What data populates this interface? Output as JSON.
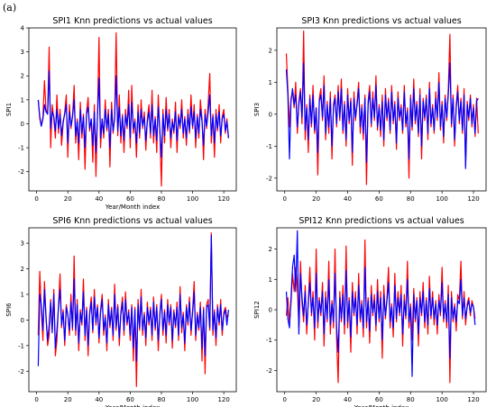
{
  "figure_label": "(a)",
  "colors": {
    "actual": "#ff0000",
    "predicted": "#0000ff",
    "axis": "#000000"
  },
  "chart_data": [
    {
      "type": "line",
      "title": "SPI1 Knn predictions vs actual values",
      "xlabel": "Year/Month index",
      "ylabel": "SPI1",
      "xlim": [
        -5,
        128
      ],
      "ylim": [
        -2.8,
        4.0
      ],
      "xticks": [
        0,
        20,
        40,
        60,
        80,
        100,
        120
      ],
      "yticks": [
        -2,
        -1,
        0,
        1,
        2,
        3,
        4
      ],
      "x_start": 1,
      "series": [
        {
          "values": [
            1.0,
            0.2,
            -0.1,
            0.3,
            1.8,
            0.6,
            0.4,
            3.2,
            -1.0,
            0.8,
            0.2,
            -0.6,
            1.2,
            -0.4,
            0.6,
            -0.9,
            0.0,
            0.5,
            1.2,
            -1.4,
            0.8,
            -0.2,
            0.3,
            1.6,
            -0.8,
            0.2,
            -1.5,
            0.9,
            -0.6,
            0.4,
            -1.9,
            0.5,
            1.1,
            -0.3,
            0.2,
            -1.6,
            0.8,
            -2.2,
            0.4,
            3.6,
            -1.0,
            0.2,
            -0.6,
            1.0,
            -0.3,
            0.6,
            -1.8,
            0.9,
            -0.4,
            0.3,
            3.8,
            -0.5,
            1.2,
            -0.8,
            0.4,
            -1.2,
            0.6,
            -0.2,
            1.4,
            -1.0,
            1.6,
            -0.4,
            0.2,
            -1.4,
            0.8,
            -0.6,
            1.0,
            -0.2,
            0.5,
            -1.1,
            0.2,
            0.8,
            -0.6,
            1.4,
            -0.8,
            0.3,
            -1.2,
            1.2,
            -0.4,
            -2.6,
            0.6,
            -0.8,
            1.1,
            -0.3,
            0.6,
            -1.0,
            0.2,
            -0.4,
            0.9,
            -1.2,
            0.4,
            -0.2,
            1.0,
            -0.6,
            0.3,
            -0.9,
            0.6,
            -0.4,
            1.2,
            -0.2,
            0.8,
            -1.0,
            0.4,
            -0.6,
            1.0,
            0.2,
            -1.5,
            0.6,
            -0.2,
            0.9,
            2.1,
            -0.8,
            0.4,
            -1.4,
            0.6,
            -0.3,
            0.8,
            -0.8,
            0.3,
            0.6,
            -0.4,
            0.2,
            -0.6
          ]
        },
        {
          "values": [
            1.0,
            0.3,
            -0.1,
            0.2,
            0.8,
            0.5,
            0.4,
            2.2,
            -0.2,
            0.5,
            0.3,
            -0.3,
            0.6,
            -0.2,
            0.4,
            -0.5,
            0.1,
            0.4,
            0.8,
            -0.8,
            0.5,
            -0.1,
            0.3,
            1.0,
            -0.5,
            0.1,
            -0.8,
            0.6,
            -0.4,
            0.3,
            -1.0,
            0.4,
            0.7,
            -0.2,
            0.2,
            -0.9,
            0.5,
            -1.2,
            0.3,
            1.9,
            -0.6,
            0.2,
            -0.4,
            0.6,
            -0.2,
            0.4,
            -1.0,
            0.6,
            -0.3,
            0.2,
            2.0,
            -0.3,
            0.7,
            -0.5,
            0.3,
            -0.7,
            0.4,
            -0.1,
            0.8,
            -0.6,
            0.9,
            -0.2,
            0.1,
            -0.8,
            0.5,
            -0.4,
            0.6,
            -0.1,
            0.3,
            -0.7,
            0.1,
            0.5,
            -0.4,
            0.8,
            -0.5,
            0.2,
            -0.7,
            0.7,
            -0.3,
            -1.4,
            0.4,
            -0.5,
            0.6,
            -0.2,
            0.4,
            -0.6,
            0.1,
            -0.3,
            0.5,
            -0.7,
            0.3,
            -0.1,
            0.6,
            -0.4,
            0.2,
            -0.6,
            0.4,
            -0.3,
            0.7,
            -0.1,
            0.5,
            -0.6,
            0.3,
            -0.4,
            0.6,
            0.1,
            -0.9,
            0.4,
            -0.1,
            0.5,
            1.2,
            -0.5,
            0.3,
            -0.8,
            0.4,
            -0.2,
            0.5,
            -0.5,
            0.2,
            0.4,
            -0.3,
            0.1,
            -0.6
          ]
        }
      ]
    },
    {
      "type": "line",
      "title": "SPI3 Knn predictions vs actual values",
      "xlabel": "",
      "ylabel": "SPI3",
      "xlim": [
        -5,
        128
      ],
      "ylim": [
        -2.4,
        2.7
      ],
      "xticks": [
        0,
        20,
        40,
        60,
        80,
        100,
        120
      ],
      "yticks": [
        -2,
        -1,
        0,
        1,
        2
      ],
      "x_start": 1,
      "series": [
        {
          "values": [
            1.9,
            0.8,
            -0.4,
            0.5,
            0.7,
            0.2,
            1.0,
            -0.6,
            0.4,
            0.8,
            -0.3,
            2.6,
            -0.8,
            0.3,
            -1.2,
            0.6,
            -0.4,
            0.9,
            -0.6,
            0.2,
            -1.9,
            0.5,
            0.8,
            -0.2,
            1.2,
            -0.8,
            0.4,
            -0.6,
            0.7,
            -1.4,
            0.3,
            0.6,
            -0.4,
            0.9,
            -0.2,
            1.1,
            -0.6,
            0.4,
            -1.0,
            0.8,
            -0.3,
            0.5,
            -1.6,
            0.7,
            -0.2,
            0.4,
            1.0,
            -0.6,
            0.3,
            -0.8,
            0.6,
            -2.2,
            0.4,
            0.9,
            -0.4,
            0.7,
            -0.2,
            1.2,
            -0.5,
            0.3,
            -0.7,
            0.6,
            -1.0,
            0.8,
            -0.2,
            0.5,
            -0.6,
            0.9,
            -0.3,
            0.4,
            -1.1,
            0.7,
            -0.2,
            0.3,
            -0.6,
            0.9,
            -0.4,
            0.2,
            -2.0,
            0.6,
            -0.5,
            1.1,
            -0.3,
            0.4,
            -0.7,
            0.8,
            -1.4,
            0.5,
            -0.2,
            0.6,
            -0.8,
            1.0,
            -0.4,
            0.3,
            -0.6,
            0.7,
            -0.2,
            1.3,
            -0.5,
            0.4,
            -0.9,
            0.6,
            -0.2,
            0.8,
            2.5,
            -0.4,
            0.6,
            -1.0,
            0.3,
            0.9,
            -0.3,
            0.5,
            -0.6,
            0.8,
            -1.6,
            0.4,
            -0.2,
            0.6,
            -0.4,
            0.3,
            -0.7,
            0.5,
            -0.6
          ]
        },
        {
          "values": [
            1.4,
            0.6,
            -1.4,
            0.4,
            0.8,
            0.3,
            0.6,
            -0.4,
            0.3,
            0.7,
            -0.1,
            1.6,
            -0.5,
            0.2,
            -0.8,
            0.5,
            -0.3,
            0.6,
            -0.5,
            0.2,
            -1.2,
            0.4,
            0.6,
            -0.1,
            0.9,
            -0.6,
            0.3,
            -0.4,
            0.5,
            -1.0,
            0.2,
            0.5,
            -0.3,
            0.7,
            -0.1,
            0.8,
            -0.5,
            0.3,
            -0.8,
            0.6,
            -0.2,
            0.4,
            -1.2,
            0.5,
            -0.1,
            0.3,
            0.8,
            -0.4,
            0.2,
            -0.6,
            0.5,
            -1.5,
            0.3,
            0.7,
            -0.3,
            0.5,
            -0.1,
            0.9,
            -0.4,
            0.2,
            -0.5,
            0.4,
            -0.8,
            0.6,
            -0.1,
            0.4,
            -0.5,
            0.7,
            -0.2,
            0.3,
            -0.9,
            0.5,
            -0.1,
            0.2,
            -0.5,
            0.7,
            -0.3,
            0.1,
            -1.4,
            0.5,
            -0.4,
            0.8,
            -0.2,
            0.3,
            -0.6,
            0.6,
            -1.0,
            0.4,
            -0.1,
            0.5,
            -0.6,
            0.8,
            -0.3,
            0.2,
            -0.5,
            0.5,
            -0.1,
            1.0,
            -0.4,
            0.3,
            -0.7,
            0.5,
            -0.1,
            0.6,
            1.6,
            -0.3,
            0.5,
            -0.8,
            0.2,
            0.7,
            -0.2,
            0.4,
            -0.5,
            0.6,
            -1.7,
            0.3,
            -0.1,
            0.5,
            -0.3,
            0.2,
            -0.6,
            0.4,
            0.5
          ]
        }
      ]
    },
    {
      "type": "line",
      "title": "SPI6 Knn predictions vs actual values",
      "xlabel": "Year/Month index",
      "ylabel": "SPI6",
      "xlim": [
        -5,
        128
      ],
      "ylim": [
        -2.8,
        3.6
      ],
      "xticks": [
        0,
        20,
        40,
        60,
        80,
        100,
        120
      ],
      "yticks": [
        -2,
        -1,
        0,
        1,
        2,
        3
      ],
      "x_start": 1,
      "series": [
        {
          "values": [
            -0.6,
            1.9,
            0.4,
            -0.8,
            1.5,
            0.2,
            -1.0,
            -0.6,
            0.8,
            -0.4,
            1.2,
            -1.4,
            -0.8,
            0.6,
            1.8,
            -0.3,
            0.4,
            -1.0,
            0.6,
            0.2,
            -0.6,
            1.0,
            -0.4,
            2.5,
            -0.6,
            0.8,
            -1.2,
            0.4,
            -0.2,
            1.6,
            -0.8,
            0.5,
            -1.4,
            0.3,
            0.9,
            -0.5,
            1.2,
            -0.2,
            0.6,
            -0.9,
            0.4,
            1.0,
            -0.6,
            0.2,
            -1.2,
            0.8,
            -0.3,
            0.5,
            -0.8,
            1.4,
            -0.4,
            0.6,
            -1.0,
            0.3,
            0.9,
            -0.6,
            1.1,
            -0.2,
            0.4,
            -0.8,
            0.6,
            -1.6,
            0.5,
            -2.6,
            0.8,
            -0.4,
            1.2,
            -0.6,
            0.3,
            -1.0,
            0.7,
            -0.2,
            0.5,
            -0.8,
            0.9,
            -0.4,
            0.6,
            -1.2,
            0.3,
            1.0,
            -0.6,
            0.4,
            -0.9,
            0.8,
            -0.2,
            0.6,
            -1.1,
            0.4,
            -0.3,
            0.7,
            -0.8,
            1.3,
            -0.5,
            0.3,
            -1.2,
            0.6,
            -0.2,
            0.9,
            -0.6,
            0.4,
            1.5,
            -0.8,
            0.3,
            -0.4,
            0.7,
            -1.6,
            0.5,
            -2.1,
            0.6,
            0.8,
            -0.4,
            3.4,
            -0.6,
            0.4,
            -1.0,
            0.6,
            -0.2,
            0.8,
            -0.6,
            0.3,
            0.5,
            0.1,
            0.2
          ]
        },
        {
          "values": [
            -1.8,
            1.0,
            0.6,
            -0.4,
            1.2,
            0.1,
            -0.8,
            -0.2,
            0.7,
            -0.5,
            1.0,
            -1.1,
            -0.4,
            0.5,
            1.2,
            -0.2,
            0.3,
            -0.8,
            0.5,
            0.2,
            -0.4,
            0.7,
            -0.3,
            1.6,
            -0.4,
            0.6,
            -0.9,
            0.3,
            -0.1,
            1.1,
            -0.6,
            0.4,
            -1.0,
            0.2,
            0.7,
            -0.4,
            0.9,
            -0.1,
            0.5,
            -0.7,
            0.3,
            0.8,
            -0.4,
            0.1,
            -0.9,
            0.6,
            -0.2,
            0.4,
            -0.6,
            1.0,
            -0.3,
            0.5,
            -0.7,
            0.2,
            0.7,
            -0.4,
            0.8,
            -0.1,
            0.3,
            -0.6,
            0.5,
            -1.1,
            0.4,
            -1.6,
            0.6,
            -0.3,
            0.9,
            -0.4,
            0.2,
            -0.7,
            0.5,
            -0.1,
            0.4,
            -0.6,
            0.7,
            -0.3,
            0.5,
            -0.8,
            0.2,
            0.8,
            -0.4,
            0.3,
            -0.6,
            0.6,
            -0.1,
            0.5,
            -0.8,
            0.3,
            -0.2,
            0.5,
            -0.6,
            1.0,
            -0.3,
            0.2,
            -0.9,
            0.5,
            -0.1,
            0.7,
            -0.4,
            0.3,
            1.1,
            -0.6,
            0.2,
            -0.3,
            0.5,
            -1.1,
            0.4,
            -1.4,
            0.5,
            0.6,
            -0.3,
            3.3,
            -0.4,
            0.3,
            -0.7,
            0.5,
            -0.1,
            0.6,
            -0.4,
            0.2,
            0.4,
            -0.2,
            0.4
          ]
        }
      ]
    },
    {
      "type": "line",
      "title": "SPI12 Knn predictions vs actual values",
      "xlabel": "Year/Month index",
      "ylabel": "SPI12",
      "xlim": [
        -5,
        128
      ],
      "ylim": [
        -2.7,
        2.7
      ],
      "xticks": [
        0,
        20,
        40,
        60,
        80,
        100,
        120
      ],
      "yticks": [
        -2,
        -1,
        0,
        1,
        2
      ],
      "x_start": 1,
      "series": [
        {
          "values": [
            -0.2,
            0.4,
            -0.4,
            0.2,
            1.2,
            0.6,
            1.4,
            0.8,
            -0.6,
            1.6,
            0.2,
            -0.4,
            0.8,
            -0.8,
            0.3,
            1.4,
            -0.2,
            0.6,
            -1.0,
            2.0,
            -0.6,
            0.4,
            -0.2,
            0.9,
            -1.2,
            0.6,
            -0.4,
            1.6,
            -0.8,
            0.3,
            -0.6,
            2.0,
            -1.0,
            -2.4,
            0.6,
            -0.4,
            0.8,
            -0.8,
            2.1,
            -0.6,
            0.4,
            -1.4,
            0.9,
            -0.2,
            0.6,
            -0.8,
            1.2,
            -0.4,
            0.3,
            -0.9,
            2.3,
            -0.6,
            0.4,
            -1.1,
            0.8,
            -0.2,
            0.5,
            -0.7,
            1.0,
            -0.4,
            0.6,
            -1.6,
            0.8,
            -0.3,
            0.4,
            1.4,
            -0.6,
            0.2,
            -0.9,
            1.2,
            -0.4,
            0.6,
            -0.2,
            0.8,
            -1.2,
            0.5,
            -0.3,
            1.6,
            -0.6,
            0.2,
            -1.0,
            0.7,
            -0.4,
            0.4,
            -1.2,
            0.6,
            -0.2,
            0.9,
            -0.6,
            0.4,
            -0.8,
            1.1,
            -0.3,
            0.6,
            -0.5,
            0.3,
            -0.8,
            0.5,
            -0.2,
            1.4,
            -0.4,
            0.3,
            -0.6,
            0.8,
            -2.4,
            0.6,
            -0.4,
            0.2,
            -0.7,
            0.5,
            0.3,
            1.6,
            -0.3,
            0.6,
            -0.5,
            0.2,
            0.4,
            -0.2,
            0.3,
            0.1,
            -0.3
          ]
        },
        {
          "values": [
            0.6,
            -0.3,
            -0.6,
            0.4,
            1.4,
            1.8,
            0.6,
            2.6,
            -0.8,
            1.2,
            0.4,
            -0.2,
            0.6,
            -0.5,
            0.2,
            0.9,
            -0.1,
            0.4,
            -0.6,
            1.2,
            -0.4,
            0.3,
            -0.1,
            0.6,
            -0.8,
            0.4,
            -0.3,
            1.0,
            -0.5,
            0.2,
            -0.4,
            1.2,
            -0.6,
            -1.4,
            0.4,
            -0.3,
            0.5,
            -0.5,
            1.3,
            -0.4,
            0.3,
            -0.9,
            0.6,
            -0.1,
            0.4,
            -0.5,
            0.8,
            -0.3,
            0.2,
            -0.6,
            1.4,
            -0.4,
            0.3,
            -0.7,
            0.5,
            -0.1,
            0.3,
            -0.5,
            0.6,
            -0.3,
            0.4,
            -1.0,
            0.5,
            -0.2,
            0.3,
            0.9,
            -0.4,
            0.1,
            -0.6,
            0.8,
            -0.3,
            0.4,
            -0.1,
            0.5,
            -0.8,
            0.3,
            -0.2,
            1.0,
            -0.4,
            0.1,
            -2.2,
            0.5,
            -0.3,
            0.3,
            -0.8,
            0.4,
            -0.1,
            0.6,
            -0.4,
            0.3,
            -0.5,
            0.7,
            -0.2,
            0.4,
            -0.3,
            0.2,
            -0.5,
            0.3,
            -0.1,
            0.9,
            -0.3,
            0.2,
            -0.4,
            0.5,
            -1.6,
            0.4,
            -0.3,
            0.1,
            -0.4,
            0.3,
            0.2,
            1.0,
            -0.2,
            0.4,
            -0.3,
            0.1,
            0.3,
            -0.1,
            0.2,
            0.1,
            -0.5
          ]
        }
      ]
    }
  ]
}
